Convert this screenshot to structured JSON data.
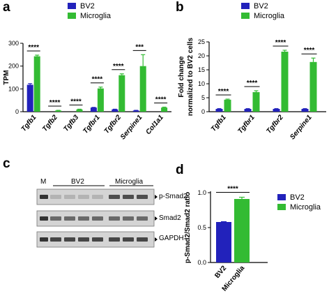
{
  "panels": {
    "a": "a",
    "b": "b",
    "c": "c",
    "d": "d"
  },
  "colors": {
    "bv2": "#2222bb",
    "microglia": "#33bb33"
  },
  "legend": {
    "bv2": "BV2",
    "microglia": "Microglia"
  },
  "chart_data": [
    {
      "panel": "a",
      "type": "bar",
      "ylabel": "TPM",
      "ylim": [
        0,
        300
      ],
      "yticks": [
        0,
        100,
        200,
        300
      ],
      "categories": [
        "Tgfb1",
        "Tgfb2",
        "Tgfb3",
        "Tgfbr1",
        "Tgfbr2",
        "Serpine1",
        "Col1a1"
      ],
      "series": [
        {
          "name": "BV2",
          "values": [
            118,
            0,
            0,
            18,
            10,
            5,
            0
          ],
          "errors": [
            5,
            0,
            0,
            1,
            1,
            1,
            0
          ]
        },
        {
          "name": "Microglia",
          "values": [
            243,
            5,
            10,
            102,
            160,
            200,
            18
          ],
          "errors": [
            5,
            1,
            1,
            6,
            6,
            50,
            2
          ]
        }
      ],
      "significance": [
        "****",
        "****",
        "****",
        "****",
        "****",
        "***",
        "****"
      ]
    },
    {
      "panel": "b",
      "type": "bar",
      "ylabel_lines": [
        "Fold change",
        "normalized to BV2 cells"
      ],
      "ylim": [
        0,
        25
      ],
      "yticks": [
        0,
        5,
        10,
        15,
        20,
        25
      ],
      "categories": [
        "Tgfb1",
        "Tgfbr1",
        "Tgfbr2",
        "Serpine1"
      ],
      "series": [
        {
          "name": "BV2",
          "values": [
            1,
            1,
            1,
            1
          ],
          "errors": [
            0.1,
            0.1,
            0.1,
            0.1
          ]
        },
        {
          "name": "Microglia",
          "values": [
            4.3,
            7.0,
            21.5,
            17.8
          ],
          "errors": [
            0.2,
            0.5,
            0.5,
            1.4
          ]
        }
      ],
      "significance": [
        "****",
        "****",
        "****",
        "****"
      ]
    },
    {
      "panel": "d",
      "type": "bar",
      "ylabel": "p-Smad2/Smad2 ratio",
      "ylim": [
        0,
        1.0
      ],
      "yticks": [
        "0.0",
        "0.5",
        "1.0"
      ],
      "categories": [
        "BV2",
        "Microglia"
      ],
      "values": [
        0.58,
        0.91
      ],
      "errors": [
        0.005,
        0.025
      ],
      "significance": "****"
    }
  ],
  "blot": {
    "marker": "M",
    "groups": [
      "BV2",
      "Microglia"
    ],
    "rows": [
      "p-Smad2",
      "Smad2",
      "GAPDH"
    ]
  }
}
